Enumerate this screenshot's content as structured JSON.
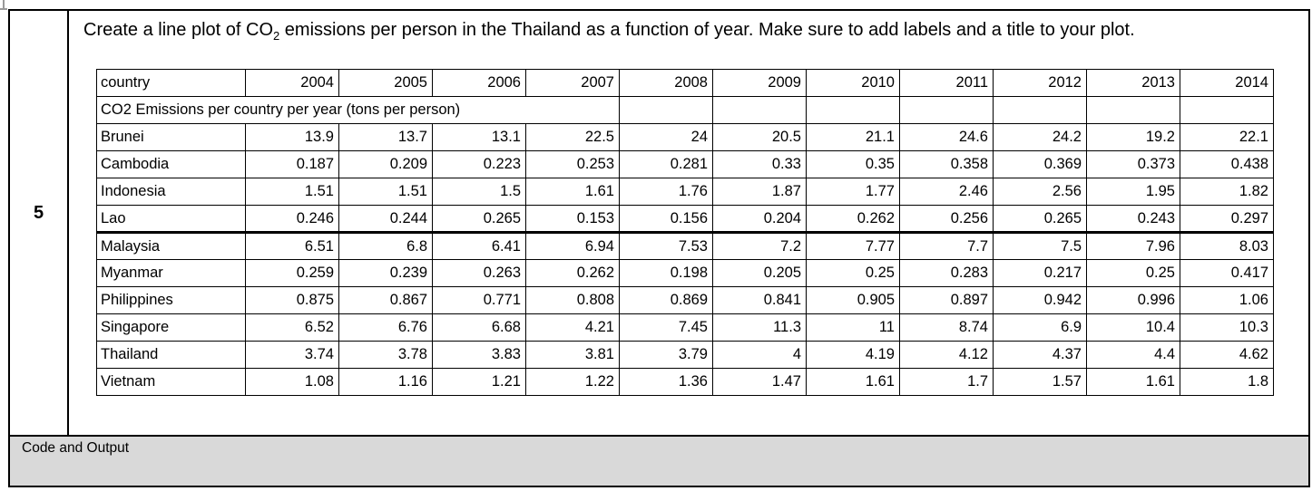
{
  "page": {
    "question_number": "5",
    "prompt": {
      "pre_sub": "Create a line plot of CO",
      "sub": "2",
      "post_sub": " emissions per person in the Thailand as a function of year. Make sure to add labels and a title to your plot."
    },
    "footer_label": "Code and Output"
  },
  "table": {
    "title": "CO2 Emissions per country per year (tons per person)",
    "header": [
      "country",
      "2004",
      "2005",
      "2006",
      "2007",
      "2008",
      "2009",
      "2010",
      "2011",
      "2012",
      "2013",
      "2014"
    ],
    "rows": [
      {
        "country": "Brunei",
        "values": [
          "13.9",
          "13.7",
          "13.1",
          "22.5",
          "24",
          "20.5",
          "21.1",
          "24.6",
          "24.2",
          "19.2",
          "22.1"
        ]
      },
      {
        "country": "Cambodia",
        "values": [
          "0.187",
          "0.209",
          "0.223",
          "0.253",
          "0.281",
          "0.33",
          "0.35",
          "0.358",
          "0.369",
          "0.373",
          "0.438"
        ]
      },
      {
        "country": "Indonesia",
        "values": [
          "1.51",
          "1.51",
          "1.5",
          "1.61",
          "1.76",
          "1.87",
          "1.77",
          "2.46",
          "2.56",
          "1.95",
          "1.82"
        ]
      },
      {
        "country": "Lao",
        "values": [
          "0.246",
          "0.244",
          "0.265",
          "0.153",
          "0.156",
          "0.204",
          "0.262",
          "0.256",
          "0.265",
          "0.243",
          "0.297"
        ]
      },
      {
        "country": "Malaysia",
        "values": [
          "6.51",
          "6.8",
          "6.41",
          "6.94",
          "7.53",
          "7.2",
          "7.77",
          "7.7",
          "7.5",
          "7.96",
          "8.03"
        ]
      },
      {
        "country": "Myanmar",
        "values": [
          "0.259",
          "0.239",
          "0.263",
          "0.262",
          "0.198",
          "0.205",
          "0.25",
          "0.283",
          "0.217",
          "0.25",
          "0.417"
        ]
      },
      {
        "country": "Philippines",
        "values": [
          "0.875",
          "0.867",
          "0.771",
          "0.808",
          "0.869",
          "0.841",
          "0.905",
          "0.897",
          "0.942",
          "0.996",
          "1.06"
        ]
      },
      {
        "country": "Singapore",
        "values": [
          "6.52",
          "6.76",
          "6.68",
          "4.21",
          "7.45",
          "11.3",
          "11",
          "8.74",
          "6.9",
          "10.4",
          "10.3"
        ]
      },
      {
        "country": "Thailand",
        "values": [
          "3.74",
          "3.78",
          "3.83",
          "3.81",
          "3.79",
          "4",
          "4.19",
          "4.12",
          "4.37",
          "4.4",
          "4.62"
        ]
      },
      {
        "country": "Vietnam",
        "values": [
          "1.08",
          "1.16",
          "1.21",
          "1.22",
          "1.36",
          "1.47",
          "1.61",
          "1.7",
          "1.57",
          "1.61",
          "1.8"
        ]
      }
    ]
  },
  "colors": {
    "band_bg": "#d9d9d9",
    "ghost_grid": "#bfbfbf",
    "border": "#000000"
  }
}
